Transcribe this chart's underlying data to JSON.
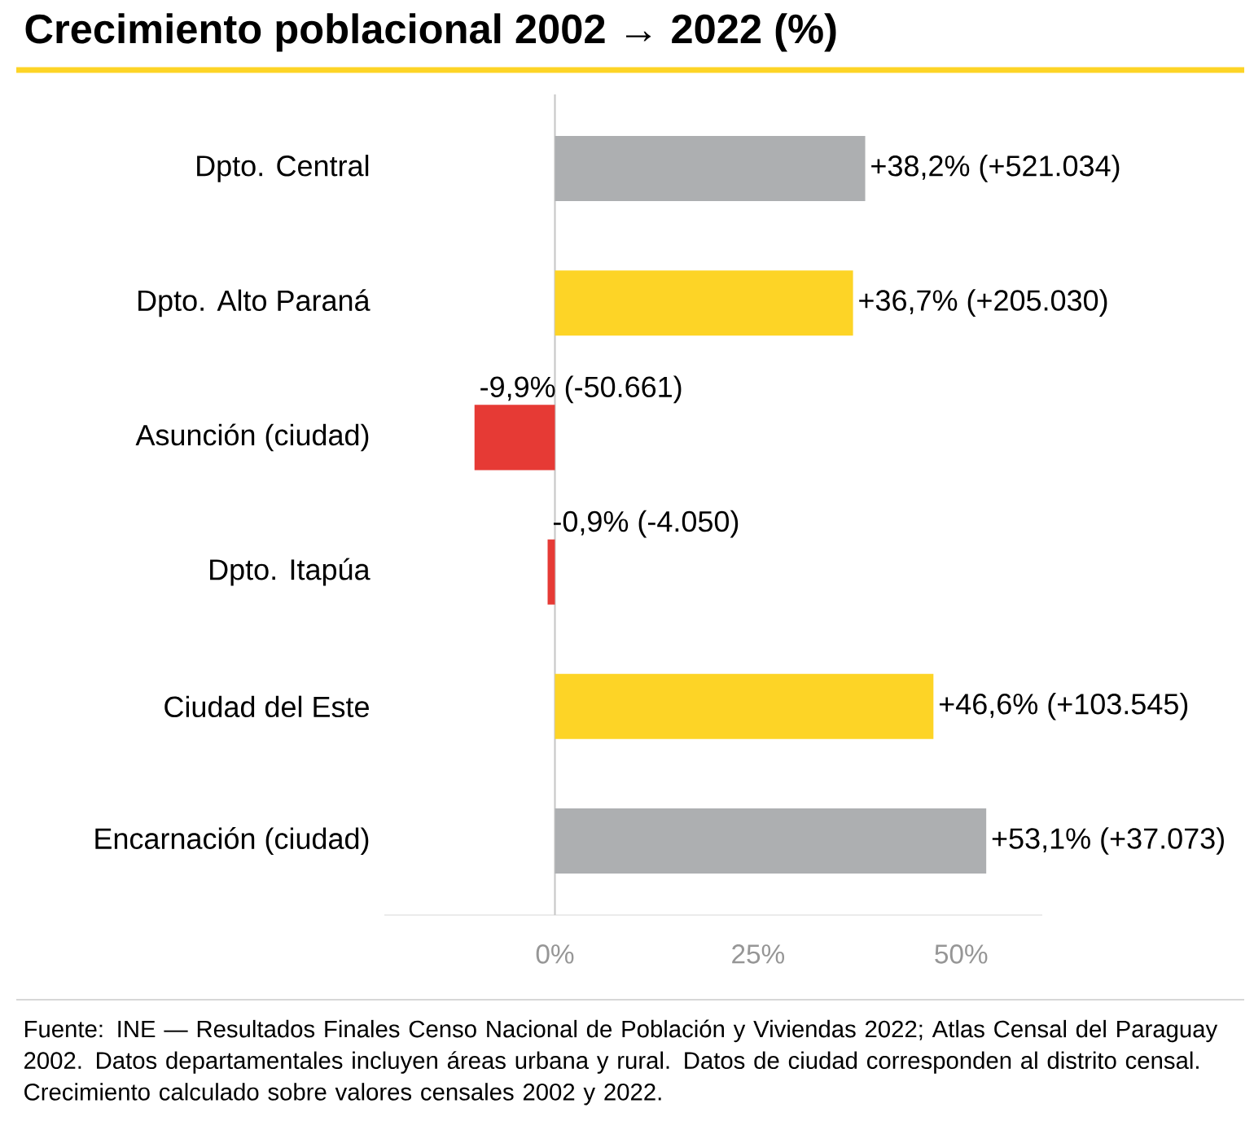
{
  "chart_data": {
    "type": "bar",
    "orientation": "horizontal",
    "title": "Crecimiento poblacional 2002 → 2022 (%)",
    "categories": [
      "Dpto. Central",
      "Dpto. Alto Paraná",
      "Asunción (ciudad)",
      "Dpto. Itapúa",
      "Ciudad del Este",
      "Encarnación (ciudad)"
    ],
    "values": [
      38.2,
      36.7,
      -9.9,
      -0.9,
      46.6,
      53.1
    ],
    "colors": [
      "#adafb1",
      "#fdd426",
      "#e63a35",
      "#e63a35",
      "#fdd426",
      "#adafb1"
    ],
    "value_labels": [
      "+38,2% (+521.034)",
      "+36,7% (+205.030)",
      "-9,9% (-50.661)",
      "-0,9% (-4.050)",
      "+46,6% (+103.545)",
      "+53,1% (+37.073)"
    ],
    "xlim": [
      -21,
      60
    ],
    "xticks": [
      {
        "value": 0,
        "label": "0%"
      },
      {
        "value": 25,
        "label": "25%"
      },
      {
        "value": 50,
        "label": "50%"
      }
    ],
    "ref_lines": [
      {
        "axis": "x",
        "value": 0,
        "color": "#c8c8c8"
      }
    ],
    "annotations": [
      "Fuente: INE — Resultados Finales Censo Nacional de Población y Viviendas 2022; Atlas Censal del Paraguay 2002. Datos departamentales incluyen áreas urbana y rural. Datos de ciudad corresponden al distrito censal. Crecimiento calculado sobre valores censales 2002 y 2022."
    ]
  }
}
